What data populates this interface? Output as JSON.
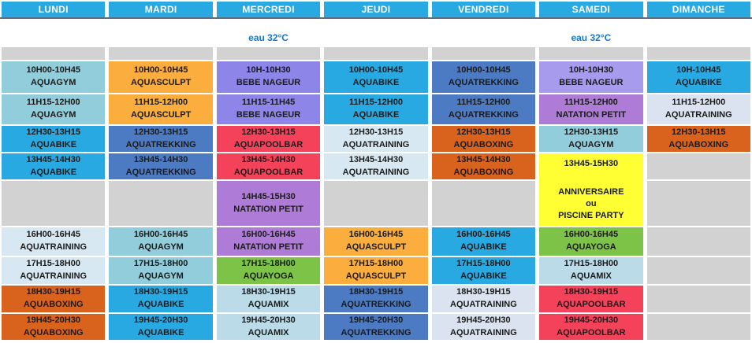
{
  "header": {
    "days": [
      "LUNDI",
      "MARDI",
      "MERCREDI",
      "JEUDI",
      "VENDREDI",
      "SAMEDI",
      "DIMANCHE"
    ]
  },
  "water_temp": {
    "label": "eau 32°C",
    "shown_under_columns": [
      "MERCREDI",
      "SAMEDI"
    ]
  },
  "colors": {
    "header_blue": "#29A9E1",
    "header_rule": "#5D7081",
    "water_label_blue": "#1877D2",
    "empty_gray": "#D2D2D2",
    "aquagym": "#92CDDC",
    "aquasculpt": "#FBAE3E",
    "bebe_nageur": "#8E85E8",
    "bebe_nageur_light": "#A79BEE",
    "aquabike": "#29A9E1",
    "aquatrekking": "#4C7BC4",
    "aquapoolbar": "#F5425B",
    "aquatraining": "#D8E8F2",
    "aquatraining_pale": "#DAE3EF",
    "aquaboxing": "#D9621D",
    "natation_petit": "#AE7CD6",
    "aquayoga": "#7DC348",
    "aquamix": "#BBDBE8",
    "anniversaire": "#FFFF33"
  },
  "schedule": {
    "rows": [
      {
        "cells": [
          {
            "time": "10H00-10H45",
            "activity": "AQUAGYM",
            "color": "aquagym"
          },
          {
            "time": "10H00-10H45",
            "activity": "AQUASCULPT",
            "color": "aquasculpt"
          },
          {
            "time": "10H-10H30",
            "activity": "BEBE NAGEUR",
            "color": "bebe_nageur"
          },
          {
            "time": "10H00-10H45",
            "activity": "AQUABIKE",
            "color": "aquabike"
          },
          {
            "time": "10H00-10H45",
            "activity": "AQUATREKKING",
            "color": "aquatrekking"
          },
          {
            "time": "10H-10H30",
            "activity": "BEBE NAGEUR",
            "color": "bebe_nageur_light"
          },
          {
            "time": "10H-10H45",
            "activity": "AQUABIKE",
            "color": "aquabike"
          }
        ]
      },
      {
        "cells": [
          {
            "time": "11H15-12H00",
            "activity": "AQUAGYM",
            "color": "aquagym"
          },
          {
            "time": "11H15-12H00",
            "activity": "AQUASCULPT",
            "color": "aquasculpt"
          },
          {
            "time": "11H15-11H45",
            "activity": "BEBE NAGEUR",
            "color": "bebe_nageur"
          },
          {
            "time": "11H15-12H00",
            "activity": "AQUABIKE",
            "color": "aquabike"
          },
          {
            "time": "11H15-12H00",
            "activity": "AQUATREKKING",
            "color": "aquatrekking"
          },
          {
            "time": "11H15-12H00",
            "activity": "NATATION PETIT",
            "color": "natation_petit"
          },
          {
            "time": "11H15-12H00",
            "activity": "AQUATRAINING",
            "color": "aquatraining_pale"
          }
        ]
      },
      {
        "cells": [
          {
            "time": "12H30-13H15",
            "activity": "AQUABIKE",
            "color": "aquabike"
          },
          {
            "time": "12H30-13H15",
            "activity": "AQUATREKKING",
            "color": "aquatrekking"
          },
          {
            "time": "12H30-13H15",
            "activity": "AQUAPOOLBAR",
            "color": "aquapoolbar"
          },
          {
            "time": "12H30-13H15",
            "activity": "AQUATRAINING",
            "color": "aquatraining"
          },
          {
            "time": "12H30-13H15",
            "activity": "AQUABOXING",
            "color": "aquaboxing"
          },
          {
            "time": "12H30-13H15",
            "activity": "AQUAGYM",
            "color": "aquagym"
          },
          {
            "time": "12H30-13H15",
            "activity": "AQUABOXING",
            "color": "aquaboxing"
          }
        ]
      },
      {
        "cells": [
          {
            "time": "13H45-14H30",
            "activity": "AQUABIKE",
            "color": "aquabike"
          },
          {
            "time": "13H45-14H30",
            "activity": "AQUATREKKING",
            "color": "aquatrekking"
          },
          {
            "time": "13H45-14H30",
            "activity": "AQUAPOOLBAR",
            "color": "aquapoolbar"
          },
          {
            "time": "13H45-14H30",
            "activity": "AQUATRAINING",
            "color": "aquatraining"
          },
          {
            "time": "13H45-14H30",
            "activity": "AQUABOXING",
            "color": "aquaboxing"
          },
          {
            "time": "13H45-15H30",
            "lines": [
              "ANNIVERSAIRE",
              "ou",
              "PISCINE PARTY"
            ],
            "color": "anniversaire",
            "rowspan": 2
          },
          {
            "empty": true
          }
        ]
      },
      {
        "cells": [
          {
            "empty": true
          },
          {
            "empty": true
          },
          {
            "time": "14H45-15H30",
            "activity": "NATATION PETIT",
            "color": "natation_petit"
          },
          {
            "empty": true
          },
          {
            "empty": true
          },
          {
            "skip": true
          },
          {
            "empty": true
          }
        ]
      },
      {
        "cells": [
          {
            "time": "16H00-16H45",
            "activity": "AQUATRAINING",
            "color": "aquatraining"
          },
          {
            "time": "16H00-16H45",
            "activity": "AQUAGYM",
            "color": "aquagym"
          },
          {
            "time": "16H00-16H45",
            "activity": "NATATION PETIT",
            "color": "natation_petit"
          },
          {
            "time": "16H00-16H45",
            "activity": "AQUASCULPT",
            "color": "aquasculpt"
          },
          {
            "time": "16H00-16H45",
            "activity": "AQUABIKE",
            "color": "aquabike"
          },
          {
            "time": "16H00-16H45",
            "activity": "AQUAYOGA",
            "color": "aquayoga"
          },
          {
            "empty": true
          }
        ]
      },
      {
        "cells": [
          {
            "time": "17H15-18H00",
            "activity": "AQUATRAINING",
            "color": "aquatraining"
          },
          {
            "time": "17H15-18H00",
            "activity": "AQUAGYM",
            "color": "aquagym"
          },
          {
            "time": "17H15-18H00",
            "activity": "AQUAYOGA",
            "color": "aquayoga"
          },
          {
            "time": "17H15-18H00",
            "activity": "AQUASCULPT",
            "color": "aquasculpt"
          },
          {
            "time": "17H15-18H00",
            "activity": "AQUABIKE",
            "color": "aquabike"
          },
          {
            "time": "17H15-18H00",
            "activity": "AQUAMIX",
            "color": "aquamix"
          },
          {
            "empty": true
          }
        ]
      },
      {
        "cells": [
          {
            "time": "18H30-19H15",
            "activity": "AQUABOXING",
            "color": "aquaboxing"
          },
          {
            "time": "18H30-19H15",
            "activity": "AQUABIKE",
            "color": "aquabike"
          },
          {
            "time": "18H30-19H15",
            "activity": "AQUAMIX",
            "color": "aquamix"
          },
          {
            "time": "18H30-19H15",
            "activity": "AQUATREKKING",
            "color": "aquatrekking"
          },
          {
            "time": "18H30-19H15",
            "activity": "AQUATRAINING",
            "color": "aquatraining_pale"
          },
          {
            "time": "18H30-19H15",
            "activity": "AQUAPOOLBAR",
            "color": "aquapoolbar"
          },
          {
            "empty": true
          }
        ]
      },
      {
        "cells": [
          {
            "time": "19H45-20H30",
            "activity": "AQUABOXING",
            "color": "aquaboxing"
          },
          {
            "time": "19H45-20H30",
            "activity": "AQUABIKE",
            "color": "aquabike"
          },
          {
            "time": "19H45-20H30",
            "activity": "AQUAMIX",
            "color": "aquamix"
          },
          {
            "time": "19H45-20H30",
            "activity": "AQUATREKKING",
            "color": "aquatrekking"
          },
          {
            "time": "19H45-20H30",
            "activity": "AQUATRAINING",
            "color": "aquatraining_pale"
          },
          {
            "time": "19H45-20H30",
            "activity": "AQUAPOOLBAR",
            "color": "aquapoolbar"
          },
          {
            "empty": true
          }
        ]
      }
    ]
  }
}
